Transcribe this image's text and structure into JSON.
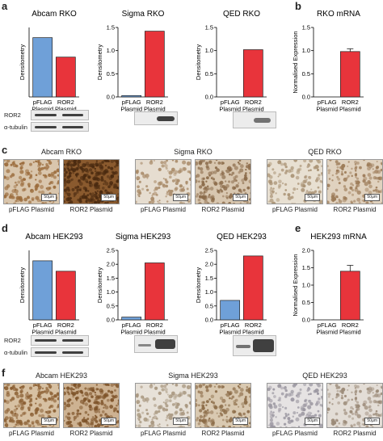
{
  "panel_labels": {
    "a": "a",
    "b": "b",
    "c": "c",
    "d": "d",
    "e": "e",
    "f": "f"
  },
  "colors": {
    "blue": "#6fa0d8",
    "red": "#e8343b"
  },
  "chart_data": [
    {
      "id": "a1",
      "type": "bar",
      "title": "Abcam RKO",
      "ylabel": "Densitometry",
      "categories": [
        "pFLAG Plasmid",
        "ROR2 Plasmid"
      ],
      "values": [
        1.28,
        0.86
      ],
      "ylim": [
        0,
        1.5
      ],
      "yticks": [],
      "bar_colors": [
        "blue",
        "red"
      ],
      "error": null,
      "show_yaxis": false
    },
    {
      "id": "a2",
      "type": "bar",
      "title": "Sigma RKO",
      "ylabel": "Densitometry",
      "categories": [
        "pFLAG Plasmid",
        "ROR2 Plasmid"
      ],
      "values": [
        0.03,
        1.42
      ],
      "ylim": [
        0,
        1.5
      ],
      "yticks": [
        "0.0",
        "0.5",
        "1.0",
        "1.5"
      ],
      "bar_colors": [
        "blue",
        "red"
      ],
      "error": null,
      "show_yaxis": true
    },
    {
      "id": "a3",
      "type": "bar",
      "title": "QED RKO",
      "ylabel": "Densitometry",
      "categories": [
        "pFLAG Plasmid",
        "ROR2 Plasmid"
      ],
      "values": [
        0,
        1.02
      ],
      "ylim": [
        0,
        1.5
      ],
      "yticks": [
        "0.0",
        "0.5",
        "1.0",
        "1.5"
      ],
      "bar_colors": [
        "blue",
        "red"
      ],
      "error": null,
      "show_yaxis": true
    },
    {
      "id": "b",
      "type": "bar",
      "title": "RKO mRNA",
      "ylabel": "Normalised Expression",
      "categories": [
        "pFLAG Plasmid",
        "ROR2 Plasmid"
      ],
      "values": [
        0,
        0.98
      ],
      "ylim": [
        0,
        1.5
      ],
      "yticks": [
        "0.0",
        "0.5",
        "1.0",
        "1.5"
      ],
      "bar_colors": [
        "blue",
        "red"
      ],
      "error": [
        0,
        0.06
      ],
      "show_yaxis": true
    },
    {
      "id": "d1",
      "type": "bar",
      "title": "Abcam HEK293",
      "ylabel": "Densitometry",
      "categories": [
        "pFLAG Plasmid",
        "ROR2 Plasmid"
      ],
      "values": [
        0.68,
        0.56
      ],
      "ylim": [
        0,
        0.8
      ],
      "yticks": [],
      "bar_colors": [
        "blue",
        "red"
      ],
      "error": null,
      "show_yaxis": false
    },
    {
      "id": "d2",
      "type": "bar",
      "title": "Sigma HEK293",
      "ylabel": "Densitometry",
      "categories": [
        "pFLAG Plasmid",
        "ROR2 Plasmid"
      ],
      "values": [
        0.1,
        2.05
      ],
      "ylim": [
        0,
        2.5
      ],
      "yticks": [
        "0.0",
        "0.5",
        "1.0",
        "1.5",
        "2.0",
        "2.5"
      ],
      "bar_colors": [
        "blue",
        "red"
      ],
      "error": null,
      "show_yaxis": true
    },
    {
      "id": "d3",
      "type": "bar",
      "title": "QED HEK293",
      "ylabel": "Densitometry",
      "categories": [
        "pFLAG Plasmid",
        "ROR2 Plasmid"
      ],
      "values": [
        0.7,
        2.3
      ],
      "ylim": [
        0,
        2.5
      ],
      "yticks": [
        "0.0",
        "0.5",
        "1.0",
        "1.5",
        "2.0",
        "2.5"
      ],
      "bar_colors": [
        "blue",
        "red"
      ],
      "error": null,
      "show_yaxis": true
    },
    {
      "id": "e",
      "type": "bar",
      "title": "HEK293 mRNA",
      "ylabel": "Normalised Expression",
      "categories": [
        "pFLAG Plasmid",
        "ROR2 Plasmid"
      ],
      "values": [
        0,
        1.4
      ],
      "ylim": [
        0,
        2.0
      ],
      "yticks": [
        "0.0",
        "0.5",
        "1.0",
        "1.5",
        "2.0"
      ],
      "bar_colors": [
        "blue",
        "red"
      ],
      "error": [
        0,
        0.17
      ],
      "show_yaxis": true
    }
  ],
  "blots": {
    "ror2_label": "ROR2",
    "tubulin_label": "α-tubulin"
  },
  "ihc": {
    "rko": [
      {
        "title": "Abcam RKO",
        "pflag": "pFLAG Plasmid",
        "ror2": "ROR2 Plasmid"
      },
      {
        "title": "Sigma RKO",
        "pflag": "pFLAG Plasmid",
        "ror2": "ROR2 Plasmid"
      },
      {
        "title": "QED RKO",
        "pflag": "pFLAG Plasmid",
        "ror2": "ROR2 Plasmid"
      }
    ],
    "hek": [
      {
        "title": "Abcam HEK293",
        "pflag": "pFLAG Plasmid",
        "ror2": "ROR2 Plasmid"
      },
      {
        "title": "Sigma HEK293",
        "pflag": "pFLAG Plasmid",
        "ror2": "ROR2 Plasmid"
      },
      {
        "title": "QED HEK293",
        "pflag": "pFLAG Plasmid",
        "ror2": "ROR2 Plasmid"
      }
    ],
    "scale_bar": "50µm"
  }
}
